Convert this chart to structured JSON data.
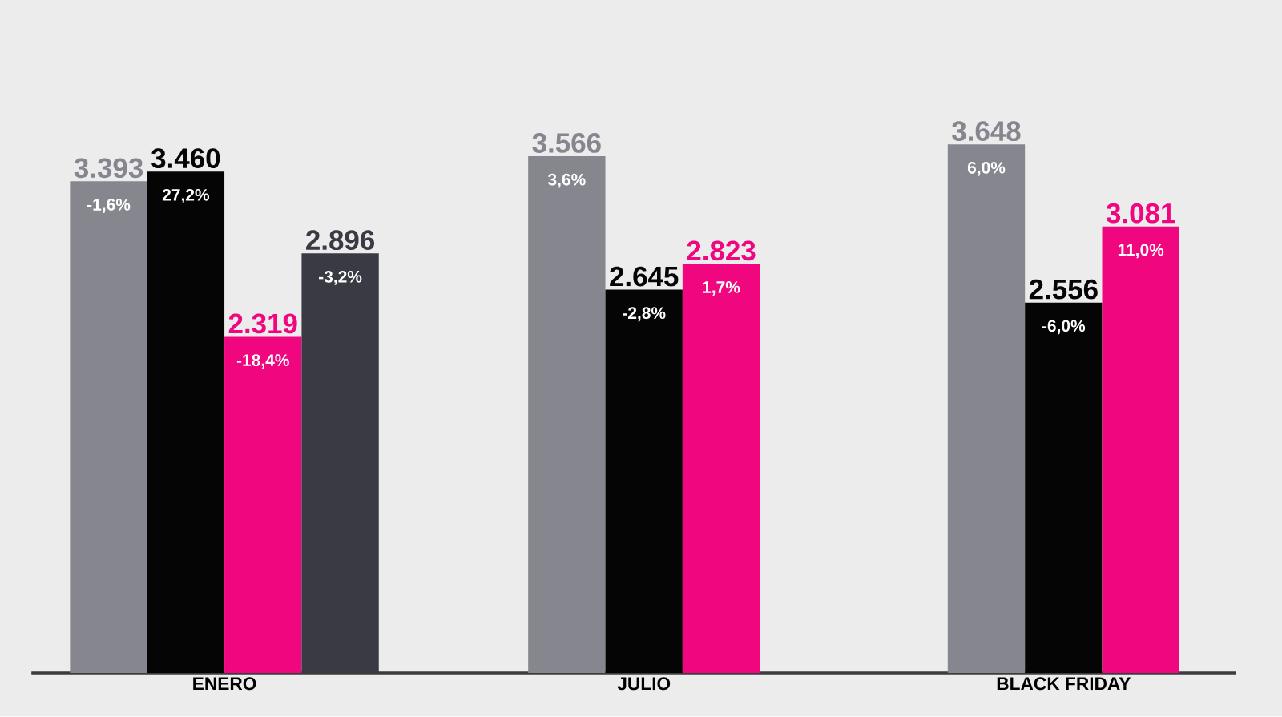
{
  "chart_data": {
    "type": "bar",
    "categories": [
      "ENERO",
      "JULIO",
      "BLACK FRIDAY"
    ],
    "series": [
      {
        "color": "#86868e",
        "values": [
          3393,
          3566,
          3648
        ],
        "value_labels": [
          "3.393",
          "3.566",
          "3.648"
        ]
      },
      {
        "color": "#050505",
        "values": [
          3460,
          2645,
          2556
        ],
        "value_labels": [
          "3.460",
          "2.645",
          "2.556"
        ]
      },
      {
        "color": "#f0077f",
        "values": [
          2319,
          2823,
          3081
        ],
        "value_labels": [
          "2.319",
          "2.823",
          "3.081"
        ]
      },
      {
        "color": "#3a3a44",
        "values": [
          2896,
          null,
          null
        ],
        "value_labels": [
          "2.896",
          null,
          null
        ]
      }
    ],
    "tick_labels": "x",
    "annotations": [
      "-1,6%",
      "3,6%",
      "6,0%",
      "27,2%",
      "-2,8%",
      "-6,0%",
      "-18,4%",
      "1,7%",
      "11,0%",
      "-3,2%"
    ]
  }
}
